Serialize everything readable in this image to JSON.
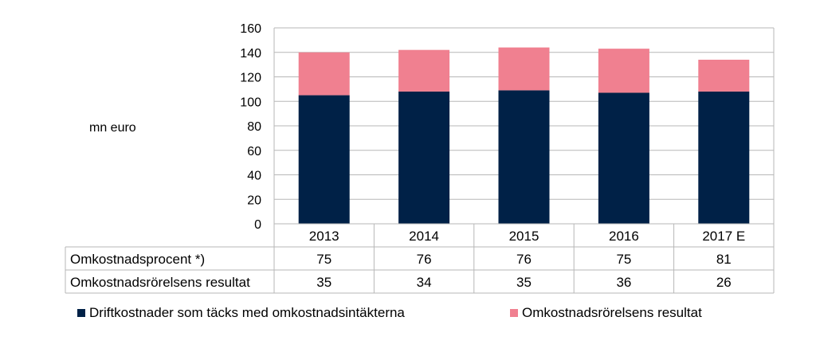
{
  "chart_data": {
    "type": "bar",
    "stacked": true,
    "ylabel": "mn euro",
    "ylim": [
      0,
      160
    ],
    "yticks": [
      0,
      20,
      40,
      60,
      80,
      100,
      120,
      140,
      160
    ],
    "grid": true,
    "categories": [
      "2013",
      "2014",
      "2015",
      "2016",
      "2017 E"
    ],
    "series": [
      {
        "name": "Driftkostnader som täcks med omkostnadsintäkterna",
        "color": "#002147",
        "values": [
          105,
          108,
          109,
          107,
          108
        ]
      },
      {
        "name": "Omkostnadsrörelsens resultat",
        "color": "#f08090",
        "values": [
          35,
          34,
          35,
          36,
          26
        ]
      }
    ],
    "table": {
      "rows": [
        {
          "label": "Omkostnadsprocent *)",
          "values": [
            "75",
            "76",
            "76",
            "75",
            "81"
          ]
        },
        {
          "label": "Omkostnadsrörelsens resultat",
          "values": [
            "35",
            "34",
            "35",
            "36",
            "26"
          ]
        }
      ]
    },
    "legend_position": "bottom"
  }
}
